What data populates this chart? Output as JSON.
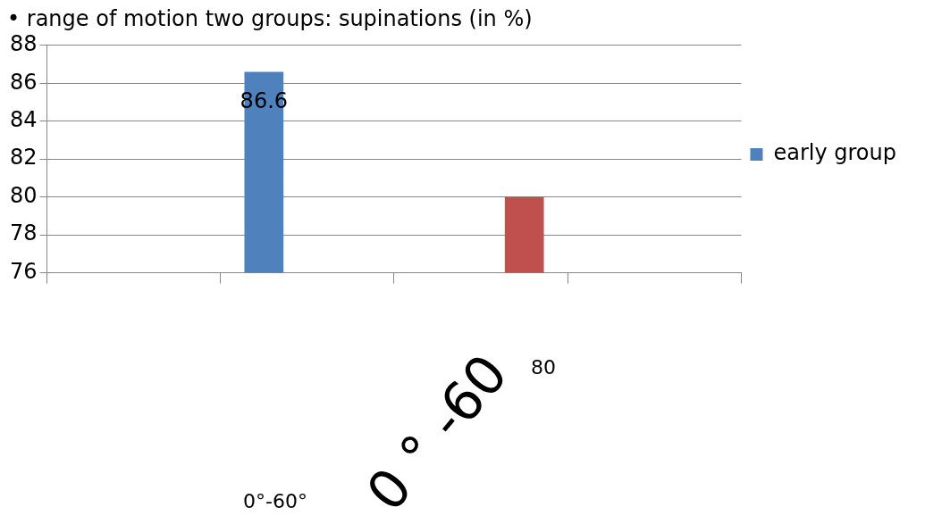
{
  "chart_data": {
    "type": "bar",
    "title": "• range of motion two groups: supinations (in %)",
    "categories": [
      null,
      null,
      null,
      null
    ],
    "series": [
      {
        "name": "early group",
        "color": "#4f81bd",
        "values": [
          null,
          86.6,
          null,
          null
        ],
        "value_labels": [
          null,
          "86.6",
          null,
          null
        ]
      },
      {
        "color": "#c0504d",
        "values": [
          null,
          null,
          80,
          null
        ]
      }
    ],
    "ylim": [
      76,
      88
    ],
    "yticks": [
      76,
      78,
      80,
      82,
      84,
      86,
      88
    ],
    "grid": "y",
    "legend": "right",
    "annotations": [
      "80",
      "0 ° -60",
      "0°-60°"
    ]
  }
}
